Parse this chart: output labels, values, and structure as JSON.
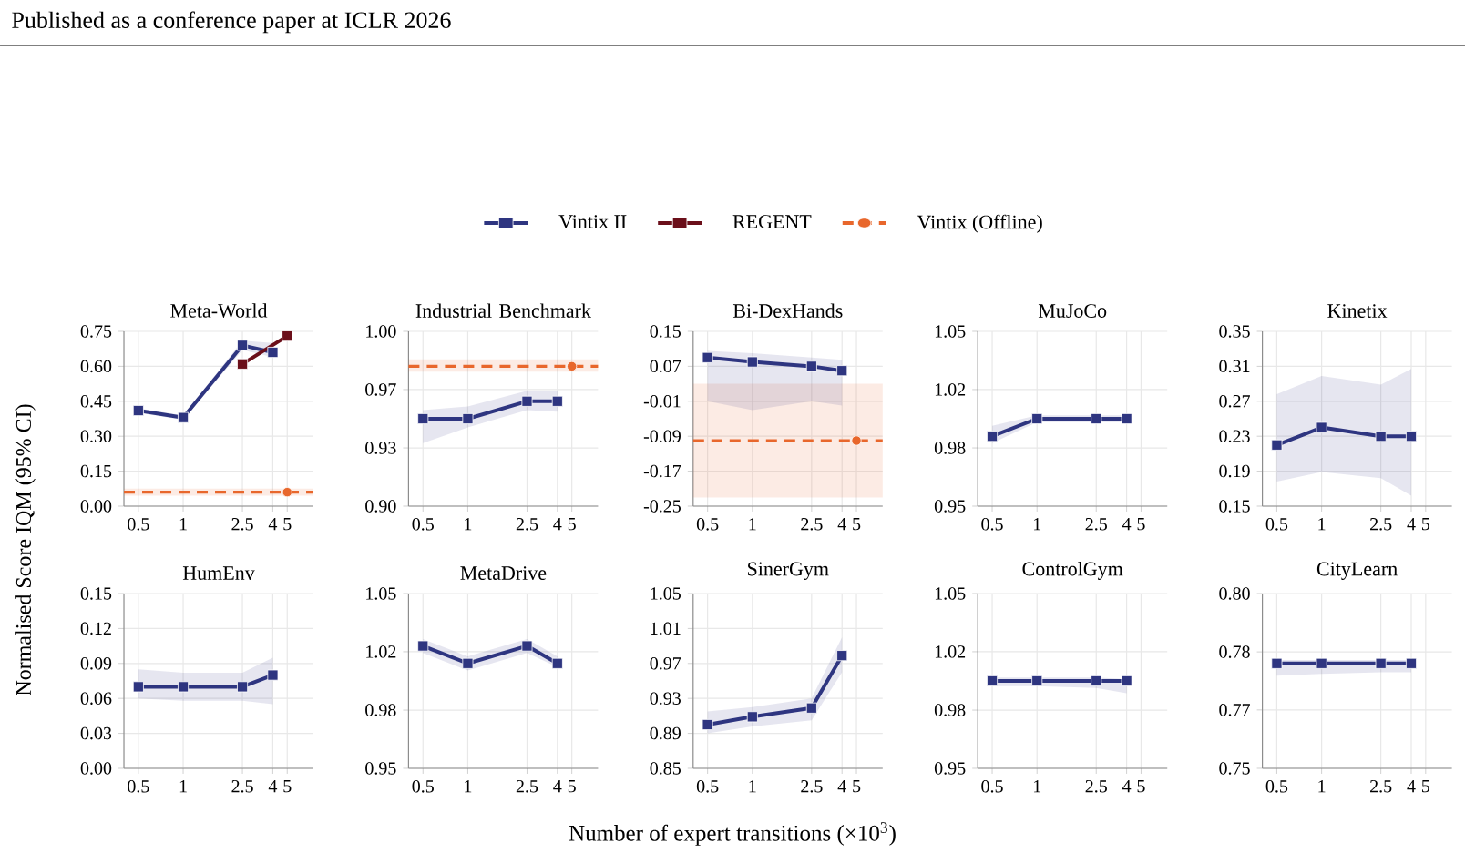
{
  "chart_data": [
    {
      "type": "line",
      "title": "Meta-World",
      "ylabel": "Normalised Score IQM (95% CI)",
      "annotations": [
        "Published as a conference paper at ICLR 2026"
      ],
      "legend": "top",
      "log": "x",
      "grid": true,
      "xlim": [
        0.4,
        7.5
      ],
      "xticks": [
        0.5,
        1,
        2.5,
        4,
        5
      ],
      "ylim": [
        0,
        0.75
      ],
      "yticks": [
        {
          "value": 0,
          "label": "0.00"
        },
        0.15,
        {
          "value": 0.3,
          "label": "0.30"
        },
        0.45,
        {
          "value": 0.6,
          "label": "0.60"
        },
        0.75
      ],
      "series": [
        {
          "name": "Vintix II",
          "color": "#2e3580",
          "marker": "square",
          "x": [
            0.5,
            1,
            2.5,
            4
          ],
          "values": [
            0.41,
            0.38,
            0.69,
            0.66
          ],
          "lower": [
            0.4,
            0.37,
            0.67,
            0.64
          ],
          "upper": [
            0.42,
            0.39,
            0.71,
            0.7
          ]
        },
        {
          "name": "REGENT",
          "color": "#6b0f1a",
          "marker": "square",
          "x": [
            2.5,
            5
          ],
          "values": [
            0.61,
            0.73
          ]
        },
        {
          "name": "Vintix (Offline)",
          "color": "#e8672c",
          "marker": "circle",
          "line_style": "dashed",
          "x": [
            5
          ],
          "values": [
            0.06
          ]
        }
      ],
      "ref_lines": [
        {
          "axis": "y",
          "value": 0.06,
          "color": "#e8672c",
          "line_style": "dashed"
        }
      ],
      "bands": [
        {
          "axis": "y",
          "from": 0.045,
          "to": 0.075,
          "color": "#e8672c"
        }
      ]
    },
    {
      "type": "line",
      "title": "Industrial Benchmark",
      "log": "x",
      "grid": true,
      "xlim": [
        0.4,
        7.5
      ],
      "xticks": [
        0.5,
        1,
        2.5,
        4,
        5
      ],
      "ylim": [
        0.9,
        1.0
      ],
      "yticks": [
        {
          "value": 0.9,
          "label": "0.90"
        },
        {
          "value": 0.9333,
          "label": "0.93"
        },
        {
          "value": 0.9667,
          "label": "0.97"
        },
        {
          "value": 1.0,
          "label": "1.00"
        }
      ],
      "series": [
        {
          "color": "#2e3580",
          "marker": "square",
          "x": [
            0.5,
            1,
            2.5,
            4
          ],
          "values": [
            0.95,
            0.95,
            0.96,
            0.96
          ],
          "lower": [
            0.936,
            0.945,
            0.955,
            0.954
          ],
          "upper": [
            0.955,
            0.957,
            0.966,
            0.966
          ]
        },
        {
          "color": "#e8672c",
          "marker": "circle",
          "line_style": "dashed",
          "x": [
            5
          ],
          "values": [
            0.98
          ]
        }
      ],
      "ref_lines": [
        {
          "axis": "y",
          "value": 0.98,
          "color": "#e8672c",
          "line_style": "dashed"
        }
      ],
      "bands": [
        {
          "axis": "y",
          "from": 0.977,
          "to": 0.984,
          "color": "#e8672c"
        }
      ]
    },
    {
      "type": "line",
      "title": "Bi-DexHands",
      "log": "x",
      "grid": true,
      "xlim": [
        0.4,
        7.5
      ],
      "xticks": [
        0.5,
        1,
        2.5,
        4,
        5
      ],
      "ylim": [
        -0.25,
        0.15
      ],
      "yticks": [
        -0.25,
        -0.17,
        -0.09,
        -0.01,
        0.07,
        0.15
      ],
      "series": [
        {
          "color": "#2e3580",
          "marker": "square",
          "x": [
            0.5,
            1,
            2.5,
            4
          ],
          "values": [
            0.09,
            0.08,
            0.07,
            0.06
          ],
          "lower": [
            -0.01,
            -0.03,
            -0.01,
            -0.02
          ],
          "upper": [
            0.105,
            0.1,
            0.09,
            0.085
          ]
        },
        {
          "color": "#e8672c",
          "marker": "circle",
          "line_style": "dashed",
          "x": [
            5
          ],
          "values": [
            -0.1
          ]
        }
      ],
      "ref_lines": [
        {
          "axis": "y",
          "value": -0.1,
          "color": "#e8672c",
          "line_style": "dashed"
        }
      ],
      "bands": [
        {
          "axis": "y",
          "from": -0.23,
          "to": 0.03,
          "color": "#e8672c"
        }
      ]
    },
    {
      "type": "line",
      "title": "MuJoCo",
      "log": "x",
      "grid": true,
      "xlim": [
        0.4,
        7.5
      ],
      "xticks": [
        0.5,
        1,
        2.5,
        4,
        5
      ],
      "ylim": [
        0.95,
        1.05
      ],
      "yticks": [
        0.95,
        {
          "value": 0.9833,
          "label": "0.98"
        },
        {
          "value": 1.0167,
          "label": "1.02"
        },
        1.05
      ],
      "series": [
        {
          "color": "#2e3580",
          "marker": "square",
          "x": [
            0.5,
            1,
            2.5,
            4
          ],
          "values": [
            0.99,
            1.0,
            1.0,
            1.0
          ],
          "lower": [
            0.986,
            0.998,
            0.998,
            0.998
          ],
          "upper": [
            0.996,
            1.002,
            1.002,
            1.002
          ]
        }
      ]
    },
    {
      "type": "line",
      "title": "Kinetix",
      "log": "x",
      "grid": true,
      "xlim": [
        0.4,
        7.5
      ],
      "xticks": [
        0.5,
        1,
        2.5,
        4,
        5
      ],
      "ylim": [
        0.15,
        0.35
      ],
      "yticks": [
        0.15,
        0.19,
        0.23,
        0.27,
        0.31,
        0.35
      ],
      "series": [
        {
          "color": "#2e3580",
          "marker": "square",
          "x": [
            0.5,
            1,
            2.5,
            4
          ],
          "values": [
            0.22,
            0.24,
            0.23,
            0.23
          ],
          "lower": [
            0.178,
            0.189,
            0.182,
            0.162
          ],
          "upper": [
            0.278,
            0.299,
            0.289,
            0.307
          ]
        }
      ]
    },
    {
      "type": "line",
      "title": "HumEnv",
      "log": "x",
      "grid": true,
      "xlim": [
        0.4,
        7.5
      ],
      "xticks": [
        0.5,
        1,
        2.5,
        4,
        5
      ],
      "ylim": [
        0,
        0.15
      ],
      "yticks": [
        {
          "value": 0,
          "label": "0.00"
        },
        0.03,
        0.06,
        0.09,
        0.12,
        0.15
      ],
      "series": [
        {
          "color": "#2e3580",
          "marker": "square",
          "x": [
            0.5,
            1,
            2.5,
            4
          ],
          "values": [
            0.07,
            0.07,
            0.07,
            0.08
          ],
          "lower": [
            0.06,
            0.058,
            0.058,
            0.055
          ],
          "upper": [
            0.085,
            0.082,
            0.082,
            0.095
          ]
        }
      ]
    },
    {
      "type": "line",
      "title": "MetaDrive",
      "log": "x",
      "grid": true,
      "xlim": [
        0.4,
        7.5
      ],
      "xticks": [
        0.5,
        1,
        2.5,
        4,
        5
      ],
      "ylim": [
        0.95,
        1.05
      ],
      "yticks": [
        0.95,
        {
          "value": 0.9833,
          "label": "0.98"
        },
        {
          "value": 1.0167,
          "label": "1.02"
        },
        1.05
      ],
      "series": [
        {
          "color": "#2e3580",
          "marker": "square",
          "x": [
            0.5,
            1,
            2.5,
            4
          ],
          "values": [
            1.02,
            1.01,
            1.02,
            1.01
          ],
          "lower": [
            1.016,
            1.006,
            1.016,
            1.008
          ],
          "upper": [
            1.024,
            1.014,
            1.024,
            1.014
          ]
        }
      ]
    },
    {
      "type": "line",
      "title": "SinerGym",
      "xlabel": "Number of expert transitions (×10$^{3}$)",
      "log": "x",
      "grid": true,
      "xlim": [
        0.4,
        7.5
      ],
      "xticks": [
        0.5,
        1,
        2.5,
        4,
        5
      ],
      "ylim": [
        0.85,
        1.05
      ],
      "yticks": [
        0.85,
        0.89,
        0.93,
        0.97,
        1.01,
        1.05
      ],
      "series": [
        {
          "color": "#2e3580",
          "marker": "square",
          "x": [
            0.5,
            1,
            2.5,
            4
          ],
          "values": [
            0.9,
            0.909,
            0.919,
            0.979
          ],
          "lower": [
            0.89,
            0.898,
            0.905,
            0.96
          ],
          "upper": [
            0.915,
            0.92,
            0.93,
            1.0
          ]
        }
      ]
    },
    {
      "type": "line",
      "title": "ControlGym",
      "log": "x",
      "grid": true,
      "xlim": [
        0.4,
        7.5
      ],
      "xticks": [
        0.5,
        1,
        2.5,
        4,
        5
      ],
      "ylim": [
        0.95,
        1.05
      ],
      "yticks": [
        0.95,
        {
          "value": 0.9833,
          "label": "0.98"
        },
        {
          "value": 1.0167,
          "label": "1.02"
        },
        1.05
      ],
      "series": [
        {
          "color": "#2e3580",
          "marker": "square",
          "x": [
            0.5,
            1,
            2.5,
            4
          ],
          "values": [
            1.0,
            1.0,
            1.0,
            1.0
          ],
          "lower": [
            0.997,
            0.997,
            0.996,
            0.993
          ],
          "upper": [
            1.002,
            1.002,
            1.002,
            1.001
          ]
        }
      ]
    },
    {
      "type": "line",
      "title": "CityLearn",
      "log": "x",
      "grid": true,
      "xlim": [
        0.4,
        7.5
      ],
      "xticks": [
        0.5,
        1,
        2.5,
        4,
        5
      ],
      "ylim": [
        0.75,
        0.8
      ],
      "yticks": [
        0.75,
        {
          "value": 0.7667,
          "label": "0.77"
        },
        {
          "value": 0.7833,
          "label": "0.78"
        },
        {
          "value": 0.8,
          "label": "0.80"
        }
      ],
      "series": [
        {
          "color": "#2e3580",
          "marker": "square",
          "x": [
            0.5,
            1,
            2.5,
            4
          ],
          "values": [
            0.78,
            0.78,
            0.78,
            0.78
          ],
          "lower": [
            0.7765,
            0.777,
            0.7775,
            0.7775
          ],
          "upper": [
            0.781,
            0.781,
            0.781,
            0.781
          ]
        }
      ]
    }
  ]
}
